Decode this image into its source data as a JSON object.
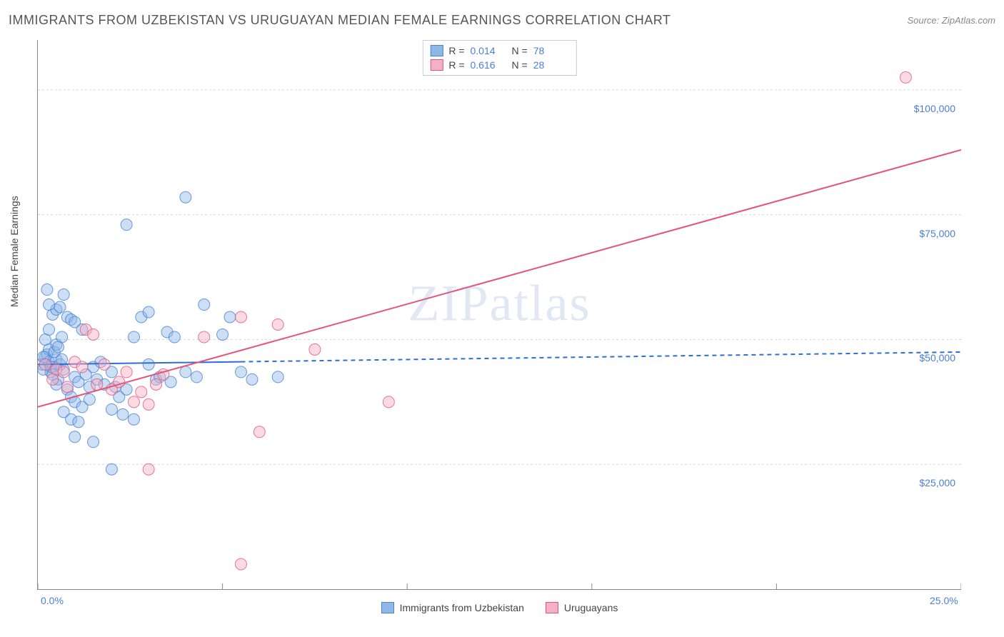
{
  "title": "IMMIGRANTS FROM UZBEKISTAN VS URUGUAYAN MEDIAN FEMALE EARNINGS CORRELATION CHART",
  "source": "Source: ZipAtlas.com",
  "watermark": "ZIPatlas",
  "y_axis_label": "Median Female Earnings",
  "chart": {
    "type": "scatter",
    "xlim": [
      0,
      25
    ],
    "ylim": [
      0,
      110000
    ],
    "x_tick_labels": {
      "0": "0.0%",
      "25": "25.0%"
    },
    "x_tick_positions": [
      0,
      5,
      10,
      15,
      20,
      25
    ],
    "y_gridlines": [
      25000,
      50000,
      75000,
      100000
    ],
    "y_tick_labels": {
      "25000": "$25,000",
      "50000": "$50,000",
      "75000": "$75,000",
      "100000": "$100,000"
    },
    "background_color": "#ffffff",
    "grid_color": "#d8d8d8",
    "grid_dash": "3,3",
    "axis_color": "#888888",
    "label_color": "#4a7fd6",
    "marker_radius": 8,
    "marker_opacity": 0.45,
    "series": [
      {
        "id": "uzbekistan",
        "label": "Immigrants from Uzbekistan",
        "color_fill": "#8fb7e8",
        "color_stroke": "#4a7fd6",
        "R": "0.014",
        "N": "78",
        "trend": {
          "x1": 0,
          "y1": 45000,
          "x2": 25,
          "y2": 47500,
          "solid_until_x": 5.5,
          "color": "#2f6fd0",
          "width": 2
        },
        "points": [
          [
            0.1,
            45000
          ],
          [
            0.2,
            46500
          ],
          [
            0.15,
            44000
          ],
          [
            0.25,
            47000
          ],
          [
            0.3,
            45500
          ],
          [
            0.4,
            44500
          ],
          [
            0.3,
            48000
          ],
          [
            0.5,
            46000
          ],
          [
            0.35,
            43500
          ],
          [
            0.6,
            45000
          ],
          [
            0.45,
            47500
          ],
          [
            0.7,
            44000
          ],
          [
            0.5,
            49000
          ],
          [
            0.55,
            42000
          ],
          [
            0.65,
            50500
          ],
          [
            0.2,
            50000
          ],
          [
            0.3,
            52000
          ],
          [
            0.8,
            54500
          ],
          [
            0.4,
            55000
          ],
          [
            0.5,
            56000
          ],
          [
            0.9,
            54000
          ],
          [
            1.0,
            53500
          ],
          [
            0.6,
            56500
          ],
          [
            0.3,
            57000
          ],
          [
            1.2,
            52000
          ],
          [
            0.7,
            59000
          ],
          [
            0.25,
            60000
          ],
          [
            0.5,
            41000
          ],
          [
            0.8,
            40000
          ],
          [
            1.0,
            42500
          ],
          [
            1.1,
            41500
          ],
          [
            1.3,
            43000
          ],
          [
            1.5,
            44500
          ],
          [
            1.7,
            45500
          ],
          [
            0.9,
            38500
          ],
          [
            1.4,
            40500
          ],
          [
            1.6,
            42000
          ],
          [
            1.8,
            41000
          ],
          [
            2.0,
            43500
          ],
          [
            2.1,
            40500
          ],
          [
            1.0,
            37500
          ],
          [
            1.2,
            36500
          ],
          [
            1.4,
            38000
          ],
          [
            0.7,
            35500
          ],
          [
            0.9,
            34000
          ],
          [
            1.1,
            33500
          ],
          [
            2.2,
            38500
          ],
          [
            2.4,
            40000
          ],
          [
            2.6,
            50500
          ],
          [
            2.8,
            54500
          ],
          [
            3.0,
            55500
          ],
          [
            3.2,
            42000
          ],
          [
            2.0,
            36000
          ],
          [
            2.3,
            35000
          ],
          [
            2.6,
            34000
          ],
          [
            1.5,
            29500
          ],
          [
            2.0,
            24000
          ],
          [
            1.0,
            30500
          ],
          [
            3.5,
            51500
          ],
          [
            3.7,
            50500
          ],
          [
            3.0,
            45000
          ],
          [
            3.3,
            42500
          ],
          [
            3.6,
            41500
          ],
          [
            4.0,
            43500
          ],
          [
            4.3,
            42500
          ],
          [
            4.5,
            57000
          ],
          [
            4.0,
            78500
          ],
          [
            2.4,
            73000
          ],
          [
            5.0,
            51000
          ],
          [
            5.2,
            54500
          ],
          [
            5.5,
            43500
          ],
          [
            5.8,
            42000
          ],
          [
            6.5,
            42500
          ],
          [
            0.15,
            46500
          ],
          [
            0.35,
            44500
          ],
          [
            0.4,
            43000
          ],
          [
            0.55,
            48500
          ],
          [
            0.65,
            46000
          ]
        ]
      },
      {
        "id": "uruguayans",
        "label": "Uruguayans",
        "color_fill": "#f4b0c4",
        "color_stroke": "#e6537a",
        "R": "0.616",
        "N": "28",
        "trend": {
          "x1": 0,
          "y1": 36500,
          "x2": 25,
          "y2": 88000,
          "solid_until_x": 25,
          "color": "#e6537a",
          "width": 2
        },
        "points": [
          [
            0.2,
            45000
          ],
          [
            0.5,
            44000
          ],
          [
            0.7,
            43500
          ],
          [
            1.0,
            45500
          ],
          [
            1.2,
            44500
          ],
          [
            0.4,
            42000
          ],
          [
            0.8,
            40500
          ],
          [
            1.3,
            52000
          ],
          [
            1.5,
            51000
          ],
          [
            1.6,
            41000
          ],
          [
            1.8,
            45000
          ],
          [
            2.0,
            40000
          ],
          [
            2.2,
            41500
          ],
          [
            2.4,
            43500
          ],
          [
            2.6,
            37500
          ],
          [
            2.8,
            39500
          ],
          [
            3.0,
            37000
          ],
          [
            3.2,
            41000
          ],
          [
            3.4,
            43000
          ],
          [
            4.5,
            50500
          ],
          [
            5.5,
            54500
          ],
          [
            6.0,
            31500
          ],
          [
            6.5,
            53000
          ],
          [
            7.5,
            48000
          ],
          [
            9.5,
            37500
          ],
          [
            3.0,
            24000
          ],
          [
            5.5,
            5000
          ],
          [
            23.5,
            102500
          ]
        ]
      }
    ]
  },
  "legend_bottom": [
    {
      "series": 0
    },
    {
      "series": 1
    }
  ]
}
